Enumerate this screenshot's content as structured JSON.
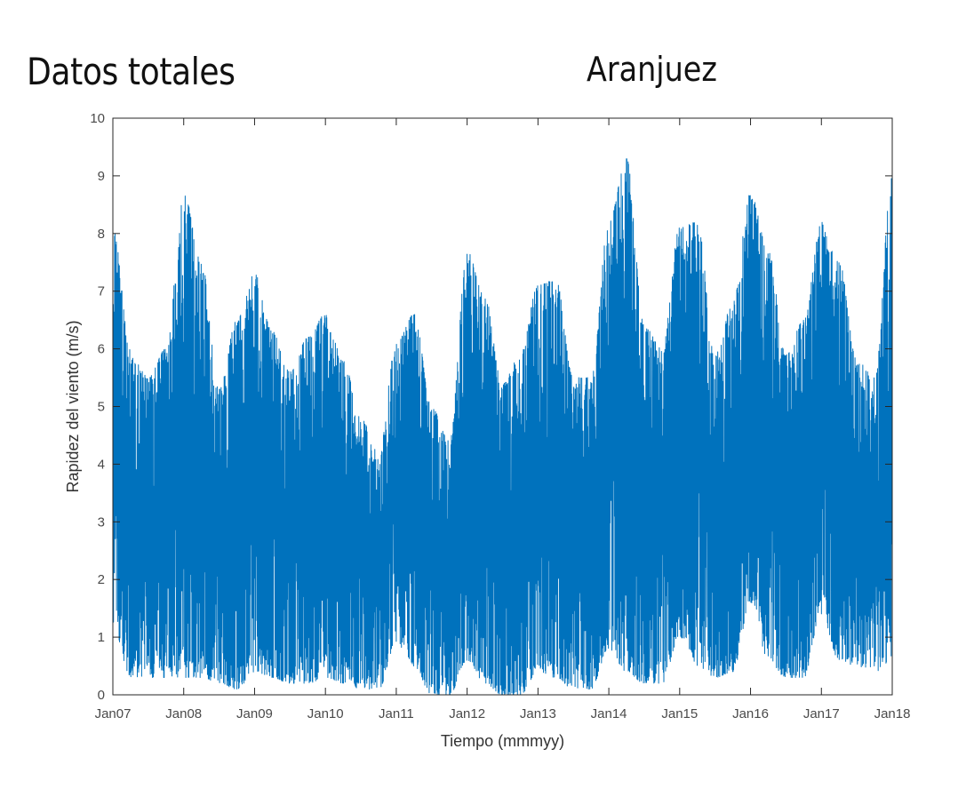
{
  "headings": {
    "left": "Datos totales",
    "right": "Aranjuez"
  },
  "chart_data": {
    "type": "line",
    "title": "Aranjuez",
    "xlabel": "Tiempo (mmmyy)",
    "ylabel": "Rapidez del viento (m/s)",
    "ylim": [
      0,
      10
    ],
    "yticks": [
      0,
      1,
      2,
      3,
      4,
      5,
      6,
      7,
      8,
      9,
      10
    ],
    "xlim": [
      "2007-01",
      "2018-01"
    ],
    "xtick_labels": [
      "Jan07",
      "Jan08",
      "Jan09",
      "Jan10",
      "Jan11",
      "Jan12",
      "Jan13",
      "Jan14",
      "Jan15",
      "Jan16",
      "Jan17",
      "Jan18"
    ],
    "grid": false,
    "legend": "none",
    "series_color": "#0072BD",
    "series": [
      {
        "x": [
          "2007-01",
          "2007-04",
          "2007-07",
          "2007-10",
          "2008-01",
          "2008-04",
          "2008-07",
          "2008-10",
          "2009-01",
          "2009-04",
          "2009-07",
          "2009-10",
          "2010-01",
          "2010-04",
          "2010-07",
          "2010-10",
          "2011-01",
          "2011-04",
          "2011-07",
          "2011-10",
          "2012-01",
          "2012-04",
          "2012-07",
          "2012-10",
          "2013-01",
          "2013-04",
          "2013-07",
          "2013-10",
          "2014-01",
          "2014-04",
          "2014-07",
          "2014-10",
          "2015-01",
          "2015-04",
          "2015-07",
          "2015-10",
          "2016-01",
          "2016-04",
          "2016-07",
          "2016-10",
          "2017-01",
          "2017-04",
          "2017-07",
          "2017-10",
          "2018-01"
        ],
        "y_max": [
          8.1,
          6.0,
          5.5,
          6.0,
          8.7,
          7.5,
          5.3,
          6.5,
          7.3,
          6.3,
          5.6,
          6.2,
          6.6,
          5.8,
          4.8,
          4.2,
          6.1,
          6.6,
          5.0,
          4.4,
          7.7,
          6.9,
          5.4,
          5.9,
          7.1,
          7.2,
          5.5,
          5.5,
          8.2,
          9.3,
          6.4,
          6.0,
          8.1,
          8.2,
          5.9,
          6.8,
          8.7,
          7.7,
          5.9,
          6.5,
          8.2,
          7.5,
          5.8,
          5.5,
          9.0
        ],
        "y_min": [
          1.2,
          0.3,
          0.3,
          0.3,
          0.3,
          0.3,
          0.2,
          0.1,
          0.4,
          0.3,
          0.2,
          0.2,
          0.3,
          0.2,
          0.1,
          0.1,
          0.9,
          0.5,
          0.0,
          0.0,
          0.6,
          0.2,
          0.0,
          0.0,
          0.4,
          0.3,
          0.1,
          0.1,
          0.8,
          0.4,
          0.2,
          0.2,
          1.0,
          0.5,
          0.3,
          0.4,
          1.6,
          0.6,
          0.3,
          0.3,
          1.4,
          0.6,
          0.5,
          0.4,
          0.6
        ]
      }
    ]
  }
}
